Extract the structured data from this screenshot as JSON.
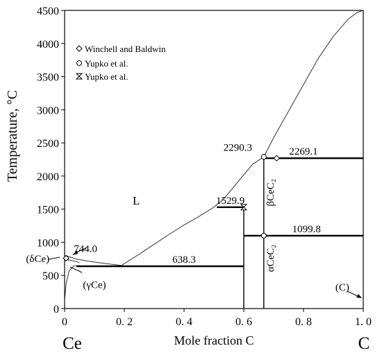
{
  "chart_data": {
    "type": "line",
    "title": "",
    "xlabel": "Mole fraction C",
    "ylabel": "Temperature, °C",
    "xlim": [
      0,
      1
    ],
    "ylim": [
      0,
      4500
    ],
    "grid": false,
    "x_ticks": [
      "0",
      "0. 2",
      "0. 4",
      "0. 6",
      "0. 8",
      "1. 0"
    ],
    "x_tick_values": [
      0,
      0.2,
      0.4,
      0.6,
      0.8,
      1.0
    ],
    "y_ticks": [
      0,
      500,
      1000,
      1500,
      2000,
      2500,
      3000,
      3500,
      4000,
      4500
    ],
    "endpoint_left": "Ce",
    "endpoint_right": "C",
    "legend_placement": "top-left",
    "legend": [
      {
        "marker": "diamond",
        "label": "Winchell and Baldwin"
      },
      {
        "marker": "circle",
        "label": "Yupko et al."
      },
      {
        "marker": "hourglass",
        "label": "Yupko et al."
      }
    ],
    "curves": [
      {
        "name": "liquidus-left",
        "points": [
          [
            0,
            798
          ],
          [
            0.01,
            790
          ],
          [
            0.02,
            775
          ],
          [
            0.04,
            745
          ],
          [
            0.08,
            715
          ],
          [
            0.12,
            690
          ],
          [
            0.16,
            668
          ],
          [
            0.19,
            650
          ]
        ]
      },
      {
        "name": "liquidus-mid",
        "points": [
          [
            0.19,
            650
          ],
          [
            0.25,
            820
          ],
          [
            0.3,
            970
          ],
          [
            0.35,
            1120
          ],
          [
            0.4,
            1260
          ],
          [
            0.45,
            1390
          ],
          [
            0.5,
            1530
          ]
        ]
      },
      {
        "name": "liquidus-upper",
        "points": [
          [
            0.5,
            1530
          ],
          [
            0.53,
            1640
          ],
          [
            0.56,
            1800
          ],
          [
            0.6,
            2020
          ],
          [
            0.63,
            2180
          ],
          [
            0.667,
            2290
          ]
        ]
      },
      {
        "name": "liquidus-C",
        "points": [
          [
            0.667,
            2290
          ],
          [
            0.7,
            2580
          ],
          [
            0.75,
            2980
          ],
          [
            0.8,
            3380
          ],
          [
            0.85,
            3780
          ],
          [
            0.9,
            4110
          ],
          [
            0.95,
            4370
          ],
          [
            0.98,
            4470
          ],
          [
            1.0,
            4500
          ]
        ]
      },
      {
        "name": "gamma-Ce-solvus",
        "points": [
          [
            0,
            110
          ],
          [
            0.005,
            380
          ],
          [
            0.015,
            570
          ],
          [
            0.03,
            640
          ],
          [
            0.05,
            650
          ]
        ]
      },
      {
        "name": "delta-Ce-gamma-boundary",
        "points": [
          [
            0,
            745
          ],
          [
            0.04,
            710
          ],
          [
            0.05,
            690
          ]
        ]
      }
    ],
    "isotherms": [
      {
        "value": 638.3,
        "label": "638.3",
        "x_range": [
          0.04,
          0.6
        ]
      },
      {
        "value": 1099.8,
        "label": "1099.8",
        "x_range": [
          0.6,
          1.0
        ]
      },
      {
        "value": 1529.9,
        "label": "1529.9",
        "x_range": [
          0.51,
          0.6
        ]
      },
      {
        "value": 2269.1,
        "label": "2269.1",
        "x_range": [
          0.667,
          1.0
        ]
      }
    ],
    "verticals": [
      {
        "x": 0.6,
        "y_range": [
          0,
          1529.9
        ]
      },
      {
        "x": 0.667,
        "y_range": [
          0,
          2290.3
        ]
      }
    ],
    "points": [
      {
        "marker": "diamond",
        "x": 0.71,
        "y": 2269
      },
      {
        "marker": "circle",
        "x": 0.667,
        "y": 2290
      },
      {
        "marker": "circle",
        "x": 0.667,
        "y": 1100
      },
      {
        "marker": "hourglass",
        "x": 0.6,
        "y": 1530
      },
      {
        "marker": "diamond",
        "x": 0.005,
        "y": 760
      }
    ],
    "annotations": [
      {
        "text": "744.0",
        "x": 0.07,
        "y": 855
      },
      {
        "text": "2290.3",
        "x": 0.58,
        "y": 2380
      },
      {
        "text": "L",
        "x": 0.24,
        "y": 1570
      },
      {
        "text": "(δCe)",
        "x": -0.09,
        "y": 700
      },
      {
        "text": "(γCe)",
        "x": 0.1,
        "y": 310
      },
      {
        "text": "βCeC₂",
        "x": 0.7,
        "y": 1750
      },
      {
        "text": "αCeC₂",
        "x": 0.7,
        "y": 760
      },
      {
        "text": "(C)",
        "x": 0.93,
        "y": 270
      }
    ]
  }
}
